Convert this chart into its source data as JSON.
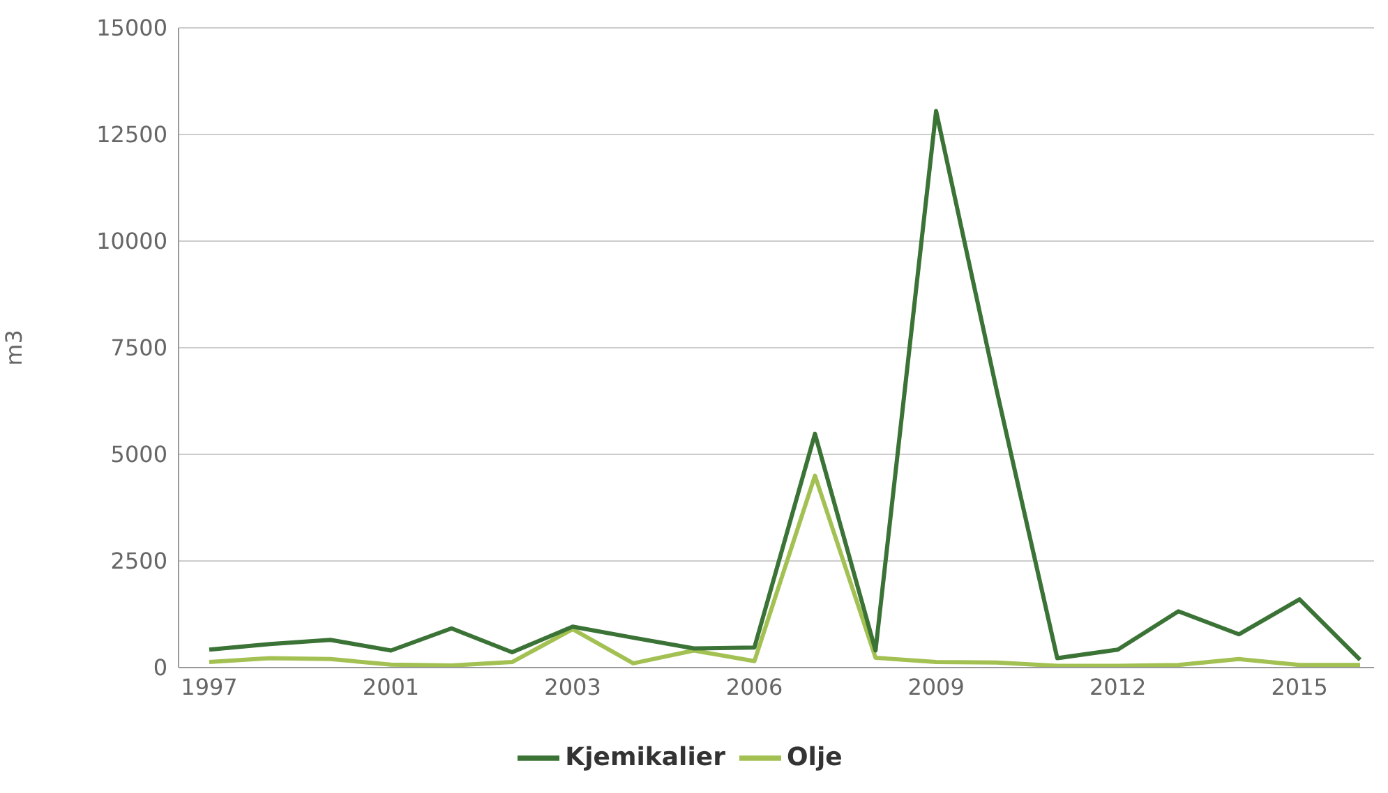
{
  "chart_data": {
    "type": "line",
    "ylabel": "m3",
    "categories": [
      "1997",
      null,
      null,
      "2001",
      null,
      null,
      "2003",
      null,
      null,
      "2006",
      null,
      null,
      "2009",
      null,
      null,
      "2012",
      null,
      null,
      "2015",
      null
    ],
    "series": [
      {
        "name": "Olje",
        "color": "#a3c152",
        "values": [
          130,
          220,
          200,
          70,
          50,
          130,
          900,
          100,
          400,
          150,
          4500,
          230,
          130,
          120,
          40,
          40,
          60,
          200,
          60,
          60
        ]
      },
      {
        "name": "Kjemikalier",
        "color": "#3a7335",
        "values": [
          420,
          550,
          650,
          400,
          920,
          360,
          960,
          700,
          450,
          470,
          5480,
          400,
          13050,
          6500,
          220,
          420,
          1320,
          780,
          1600,
          180
        ]
      }
    ],
    "ylim": [
      0,
      15000
    ],
    "yticks": [
      0,
      2500,
      5000,
      7500,
      10000,
      12500,
      15000
    ],
    "grid": "y",
    "legend": "bottom",
    "marker": "none",
    "line_style": "solid"
  }
}
